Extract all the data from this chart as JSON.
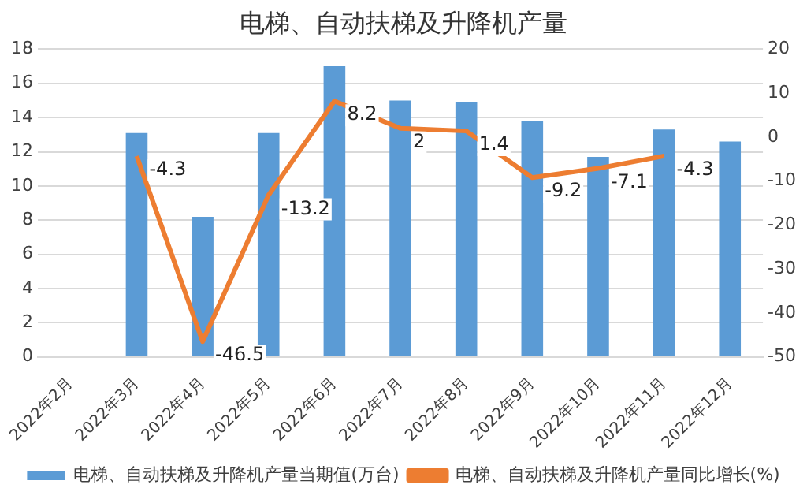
{
  "chart_data": {
    "type": "bar",
    "title": "电梯、自动扶梯及升降机产量",
    "categories": [
      "2022年2月",
      "2022年3月",
      "2022年4月",
      "2022年5月",
      "2022年6月",
      "2022年7月",
      "2022年8月",
      "2022年9月",
      "2022年10月",
      "2022年11月",
      "2022年12月"
    ],
    "series": [
      {
        "name": "电梯、自动扶梯及升降机产量当期值(万台)",
        "color": "#5b9bd5",
        "values": [
          null,
          13.1,
          8.2,
          13.1,
          17.0,
          15.0,
          14.9,
          13.8,
          11.7,
          13.3,
          12.6
        ]
      },
      {
        "name": "电梯、自动扶梯及升降机产量同比增长(%)",
        "type": "line",
        "axis": "y2",
        "color": "#ed7d31",
        "values": [
          null,
          -4.3,
          -46.5,
          -13.2,
          8.2,
          2,
          1.4,
          -9.2,
          -7.1,
          -4.3,
          null
        ],
        "value_labels": [
          null,
          "-4.3",
          "-46.5",
          "-13.2",
          "8.2",
          "2",
          "1.4",
          "-9.2",
          "-7.1",
          "-4.3",
          null
        ]
      }
    ],
    "ylim": [
      0,
      18
    ],
    "yticks": [
      0,
      2,
      4,
      6,
      8,
      10,
      12,
      14,
      16,
      18
    ],
    "y2lim": [
      -50,
      20
    ],
    "y2ticks": [
      -50,
      -40,
      -30,
      -20,
      -10,
      0,
      10,
      20
    ],
    "grid": "y",
    "legend": "bottom",
    "marker": "none"
  }
}
